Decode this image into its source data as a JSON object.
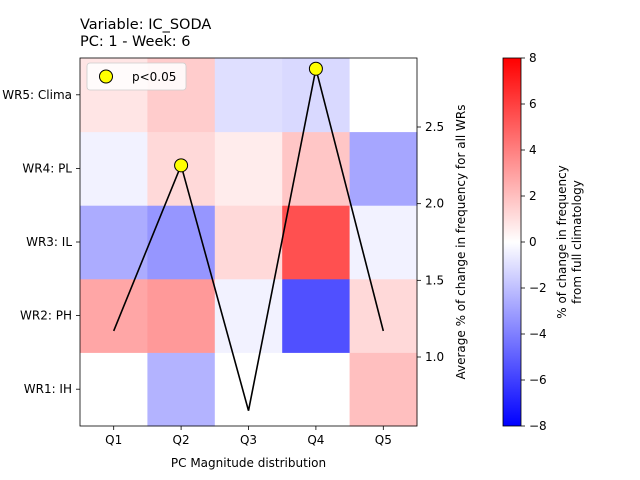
{
  "chart_data": {
    "type": "heatmap",
    "title_line1": "Variable: IC_SODA",
    "title_line2": "PC: 1 - Week: 6",
    "xlabel": "PC Magnitude distribution",
    "x_categories": [
      "Q1",
      "Q2",
      "Q3",
      "Q4",
      "Q5"
    ],
    "y_categories": [
      "WR1: IH",
      "WR2: PH",
      "WR3: IL",
      "WR4: PL",
      "WR5: Clima"
    ],
    "heatmap_values": [
      [
        0.0,
        -2.4,
        0.0,
        0.0,
        2.0
      ],
      [
        2.8,
        3.2,
        -0.4,
        -5.5,
        1.2
      ],
      [
        -2.6,
        -3.3,
        1.2,
        5.5,
        -0.4
      ],
      [
        -0.4,
        1.2,
        0.6,
        1.8,
        -2.8
      ],
      [
        0.8,
        1.6,
        -1.0,
        -1.2,
        0.0
      ]
    ],
    "colorbar": {
      "label_line1": "% of change in frequency",
      "label_line2": "from full climatology",
      "range": [
        -8,
        8
      ],
      "ticks": [
        -8,
        -6,
        -4,
        -2,
        0,
        2,
        4,
        6,
        8
      ],
      "colormap": "bwr"
    },
    "line": {
      "ylabel": "Average % of change in frequency for all WRs",
      "y_ticks": [
        1.0,
        1.5,
        2.0,
        2.5
      ],
      "ylim": [
        0.55,
        2.95
      ],
      "values": [
        1.17,
        2.25,
        0.65,
        2.88,
        1.17
      ],
      "color": "#000000"
    },
    "significance": {
      "legend_label": "p<0.05",
      "marker_color": "#ffff00",
      "marker_edge": "#000000",
      "points": [
        {
          "category": "Q2",
          "value": 2.25
        },
        {
          "category": "Q4",
          "value": 2.88
        }
      ]
    }
  }
}
